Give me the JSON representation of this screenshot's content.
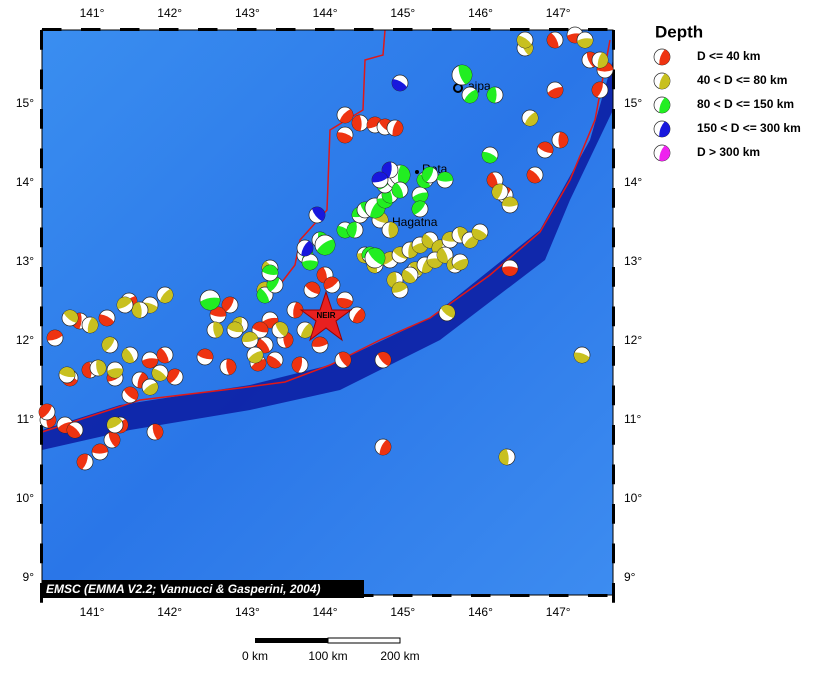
{
  "map": {
    "lon_ticks": [
      "141°",
      "142°",
      "143°",
      "144°",
      "145°",
      "146°",
      "147°"
    ],
    "lat_ticks": [
      "15°",
      "14°",
      "13°",
      "12°",
      "11°",
      "10°",
      "9°"
    ],
    "places": {
      "saipan": "aipa",
      "rota": "Rota",
      "hagatna": "Hagatna",
      "event": "NEIR"
    },
    "credit": "EMSC (EMMA V2.2; Vannucci & Gasperini, 2004)",
    "scale": [
      "0 km",
      "100 km",
      "200 km"
    ]
  },
  "legend": {
    "title": "Depth",
    "items": [
      {
        "label": "D <= 40 km",
        "color": "#ee3311"
      },
      {
        "label": "40 < D <= 80 km",
        "color": "#c8c020"
      },
      {
        "label": "80 < D <= 150 km",
        "color": "#22ee22"
      },
      {
        "label": "150 < D <= 300 km",
        "color": "#1818dd"
      },
      {
        "label": "D > 300 km",
        "color": "#ee22ee"
      }
    ]
  }
}
